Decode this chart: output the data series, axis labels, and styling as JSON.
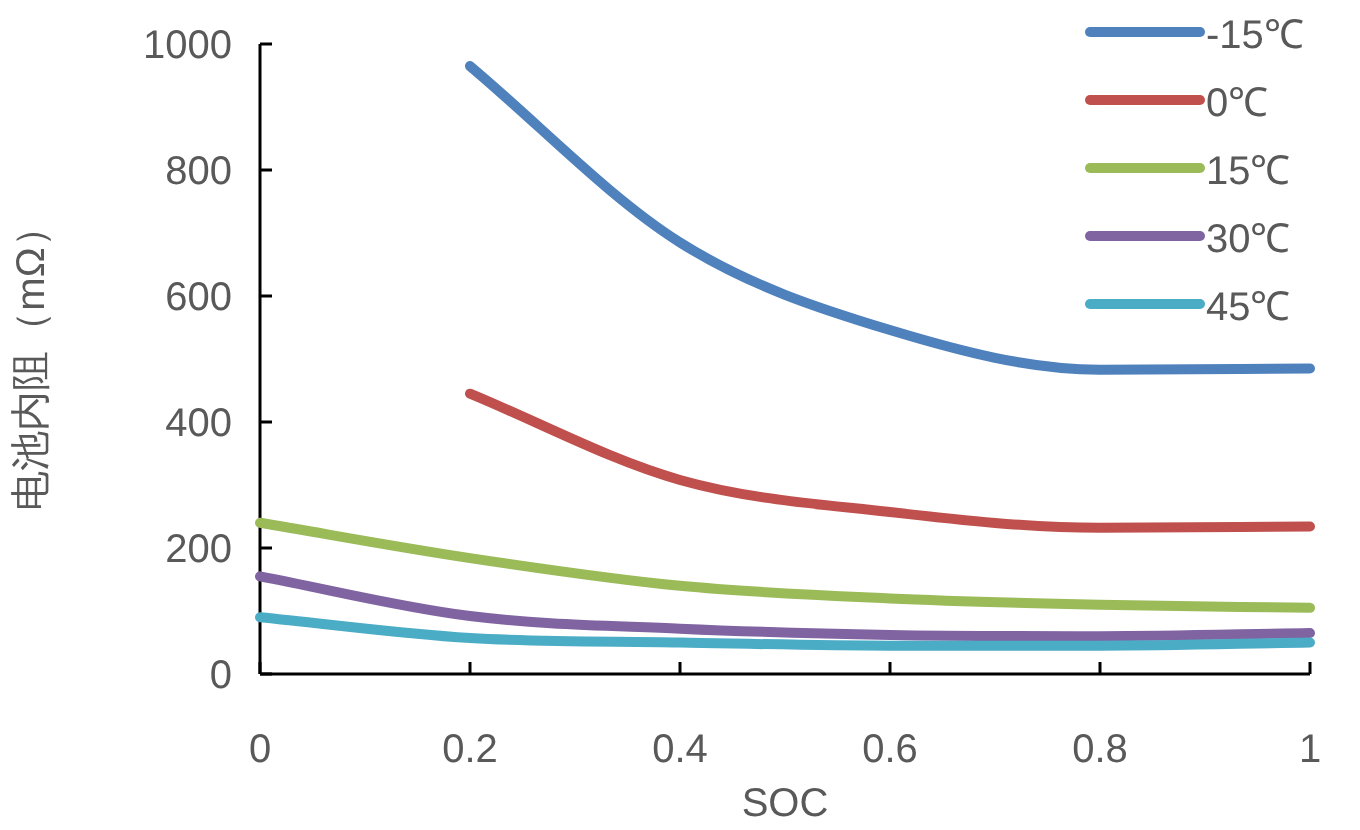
{
  "chart_data": {
    "type": "line",
    "xlabel": "SOC",
    "ylabel": "电池内阻（mΩ）",
    "x": [
      0,
      0.2,
      0.4,
      0.6,
      0.8,
      1
    ],
    "series": [
      {
        "name": "-15℃",
        "color": "#4f81bd",
        "values": [
          null,
          965,
          685,
          546,
          483,
          485
        ]
      },
      {
        "name": "0℃",
        "color": "#c0504d",
        "values": [
          null,
          445,
          308,
          257,
          232,
          234
        ]
      },
      {
        "name": "15℃",
        "color": "#9bbb59",
        "values": [
          240,
          184,
          140,
          120,
          110,
          105
        ]
      },
      {
        "name": "30℃",
        "color": "#8064a2",
        "values": [
          155,
          92,
          72,
          62,
          60,
          65
        ]
      },
      {
        "name": "45℃",
        "color": "#4bacc6",
        "values": [
          90,
          57,
          50,
          45,
          45,
          50
        ]
      }
    ],
    "xlim": [
      0,
      1
    ],
    "xticks": [
      0,
      {
        "value": 0.2,
        "label": "0.2"
      },
      {
        "value": 0.4,
        "label": "0.4"
      },
      {
        "value": 0.6,
        "label": "0.6"
      },
      {
        "value": 0.8,
        "label": "0.8"
      },
      1
    ],
    "ylim": [
      0,
      1000
    ],
    "yticks": [
      0,
      200,
      400,
      600,
      800,
      1000
    ],
    "legend": "top right",
    "grid": false,
    "marker": "none",
    "line_style": "solid"
  }
}
